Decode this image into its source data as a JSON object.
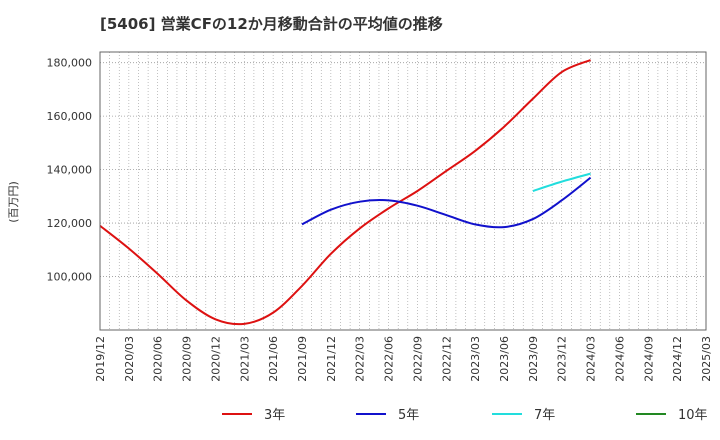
{
  "chart_data": {
    "type": "line",
    "title": "[5406]  営業CFの12か月移動合計の平均値の推移",
    "ylabel": "(百万円)",
    "xlabel": "",
    "grid": true,
    "legend_position": "bottom",
    "x_ticks": [
      "2019/12",
      "2020/03",
      "2020/06",
      "2020/09",
      "2020/12",
      "2021/03",
      "2021/06",
      "2021/09",
      "2021/12",
      "2022/03",
      "2022/06",
      "2022/09",
      "2022/12",
      "2023/03",
      "2023/06",
      "2023/09",
      "2023/12",
      "2024/03",
      "2024/06",
      "2024/09",
      "2024/12",
      "2025/03"
    ],
    "y_ticks": [
      100000,
      120000,
      140000,
      160000,
      180000
    ],
    "y_tick_labels": [
      "100,000",
      "120,000",
      "140,000",
      "160,000",
      "180,000"
    ],
    "xlim": [
      "2019/12",
      "2025/03"
    ],
    "ylim": [
      80000,
      184000
    ],
    "series": [
      {
        "name": "3年",
        "color": "#dd1111",
        "points": [
          [
            "2019/12",
            119000
          ],
          [
            "2020/03",
            110500
          ],
          [
            "2020/06",
            101000
          ],
          [
            "2020/09",
            91000
          ],
          [
            "2020/12",
            84000
          ],
          [
            "2021/03",
            82300
          ],
          [
            "2021/06",
            86500
          ],
          [
            "2021/09",
            96500
          ],
          [
            "2021/12",
            108500
          ],
          [
            "2022/03",
            118000
          ],
          [
            "2022/06",
            125500
          ],
          [
            "2022/09",
            132000
          ],
          [
            "2022/12",
            139500
          ],
          [
            "2023/03",
            147000
          ],
          [
            "2023/06",
            156000
          ],
          [
            "2023/09",
            166500
          ],
          [
            "2023/12",
            176500
          ],
          [
            "2024/03",
            181000
          ]
        ]
      },
      {
        "name": "5年",
        "color": "#1111cc",
        "points": [
          [
            "2021/09",
            119500
          ],
          [
            "2021/12",
            125000
          ],
          [
            "2022/03",
            128000
          ],
          [
            "2022/06",
            128500
          ],
          [
            "2022/09",
            126500
          ],
          [
            "2022/12",
            123000
          ],
          [
            "2023/03",
            119500
          ],
          [
            "2023/06",
            118500
          ],
          [
            "2023/09",
            121500
          ],
          [
            "2023/12",
            128500
          ],
          [
            "2024/03",
            137000
          ]
        ]
      },
      {
        "name": "7年",
        "color": "#22dddd",
        "points": [
          [
            "2023/09",
            132000
          ],
          [
            "2023/12",
            135500
          ],
          [
            "2024/03",
            138500
          ]
        ]
      },
      {
        "name": "10年",
        "color": "#228822",
        "points": []
      }
    ]
  }
}
